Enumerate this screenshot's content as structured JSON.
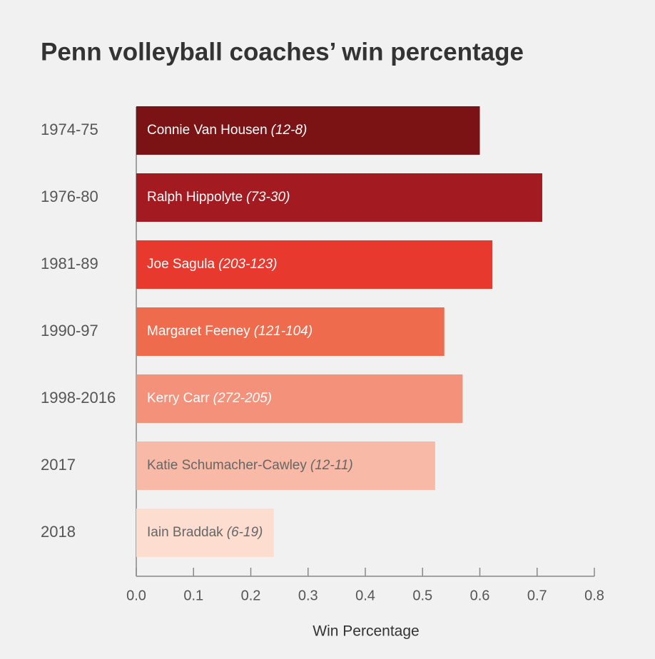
{
  "chart_data": {
    "type": "barh",
    "title": "Penn volleyball coaches’ win percentage",
    "categories": [
      "1974-75",
      "1976-80",
      "1981-89",
      "1990-97",
      "1998-2016",
      "2017",
      "2018"
    ],
    "values": [
      0.6,
      0.709,
      0.622,
      0.538,
      0.57,
      0.522,
      0.24
    ],
    "coaches": [
      "Connie Van Housen",
      "Ralph Hippolyte",
      "Joe Sagula",
      "Margaret Feeney",
      "Kerry Carr",
      "Katie Schumacher-Cawley",
      "Iain Braddak"
    ],
    "records": [
      "(12-8)",
      "(73-30)",
      "(203-123)",
      "(121-104)",
      "(272-205)",
      "(12-11)",
      "(6-19)"
    ],
    "colors": [
      "#7b1214",
      "#a31b20",
      "#e8392e",
      "#ef6b4e",
      "#f4917a",
      "#f8b9a6",
      "#fcddd0"
    ],
    "label_colors": [
      "#ffffff",
      "#ffffff",
      "#ffffff",
      "#ffffff",
      "#ffffff",
      "#666666",
      "#666666"
    ],
    "xlabel": "Win Percentage",
    "xlim": [
      0,
      0.8
    ],
    "xticks": [
      {
        "value": 0,
        "label": "0.0"
      },
      0.1,
      0.2,
      0.3,
      0.4,
      0.5,
      0.6,
      0.7,
      0.8
    ]
  }
}
